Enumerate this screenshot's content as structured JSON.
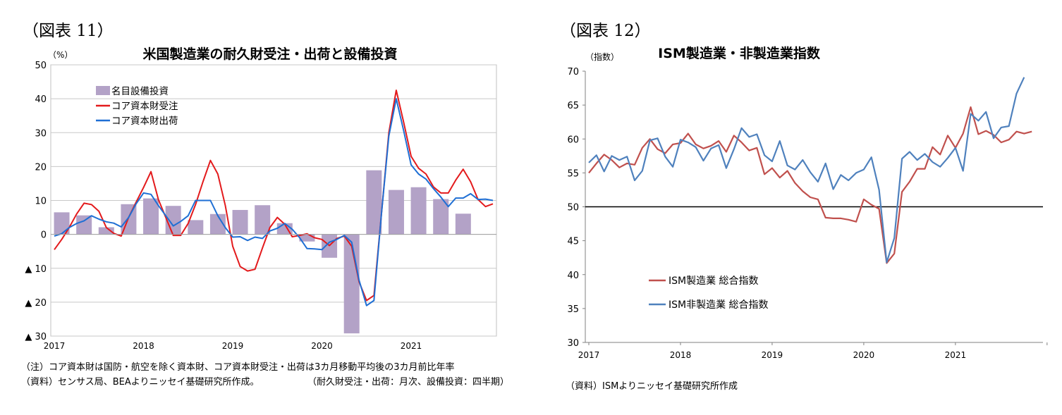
{
  "left_panel": {
    "figure_label": "（図表 11）",
    "note_line1": "（注）コア資本財は国防・航空を除く資本財、コア資本財受注・出荷は3カ月移動平均後の3カ月前比年率",
    "note_line2": "（資料）センサス局、BEAよりニッセイ基礎研究所作成。",
    "note_line2_right": "（耐久財受注・出荷：月次、設備投資：四半期）"
  },
  "right_panel": {
    "figure_label": "（図表 12）",
    "source_note": "（資料）ISMよりニッセイ基礎研究所作成"
  },
  "chart_data": [
    {
      "type": "bar",
      "title": "米国製造業の耐久財受注・出荷と設備投資",
      "unit_label": "（%）",
      "ylim": [
        -30,
        50
      ],
      "y_ticks": [
        50,
        40,
        30,
        20,
        10,
        0,
        -10,
        -20,
        -30
      ],
      "y_tick_labels": [
        "50",
        "40",
        "30",
        "20",
        "10",
        "0",
        "▲ 10",
        "▲ 20",
        "▲ 30"
      ],
      "x_tick_labels": [
        "2017",
        "2018",
        "2019",
        "2020",
        "2021"
      ],
      "grid": true,
      "legend_position": "top-left",
      "colors": {
        "bars": "#b3a2c7",
        "orders": "#e31a1c",
        "shipments": "#1f6fd4"
      },
      "bar_series": {
        "name": "名目設備投資",
        "x": [
          "2017-02",
          "2017-05",
          "2017-08",
          "2017-11",
          "2018-02",
          "2018-05",
          "2018-08",
          "2018-11",
          "2019-02",
          "2019-05",
          "2019-08",
          "2019-11",
          "2020-02",
          "2020-05",
          "2020-08",
          "2020-11",
          "2021-02",
          "2021-05",
          "2021-08"
        ],
        "values": [
          6.5,
          5.6,
          2.1,
          8.9,
          10.6,
          8.4,
          4.2,
          6.0,
          7.2,
          8.6,
          3.3,
          -2.1,
          -6.9,
          -29.2,
          18.9,
          13.1,
          13.9,
          10.4,
          6.1
        ]
      },
      "line_series": [
        {
          "name": "コア資本財受注",
          "x_start": "2017-01",
          "values": [
            -4.5,
            -1.5,
            2.0,
            6.0,
            9.2,
            8.8,
            6.8,
            2.0,
            0.3,
            -0.5,
            5.0,
            9.5,
            13.8,
            18.5,
            10.3,
            5.0,
            -0.3,
            -0.3,
            3.2,
            8.8,
            15.5,
            21.8,
            17.8,
            8.5,
            -3.5,
            -9.5,
            -10.8,
            -10.3,
            -4.0,
            2.0,
            5.0,
            3.0,
            -0.7,
            -0.3,
            0.2,
            -1.0,
            -1.5,
            -3.3,
            -1.2,
            -0.5,
            -3.5,
            -14.0,
            -19.5,
            -18.0,
            6.0,
            30.0,
            42.5,
            33.0,
            23.0,
            19.5,
            17.8,
            14.0,
            12.2,
            12.2,
            16.0,
            19.2,
            15.5,
            10.3,
            8.2,
            9.0
          ]
        },
        {
          "name": "コア資本財出荷",
          "x_start": "2017-01",
          "values": [
            -0.5,
            0.2,
            2.0,
            3.2,
            4.0,
            5.5,
            4.5,
            3.7,
            3.3,
            2.2,
            5.0,
            9.0,
            12.2,
            11.8,
            8.5,
            5.5,
            2.5,
            3.8,
            5.5,
            10.0,
            10.0,
            10.0,
            5.5,
            2.0,
            -0.8,
            -0.7,
            -1.8,
            -0.8,
            -1.2,
            1.0,
            1.8,
            3.2,
            1.5,
            -1.0,
            -4.2,
            -4.3,
            -4.5,
            -2.3,
            -1.5,
            -0.3,
            -2.3,
            -13.5,
            -21.0,
            -19.5,
            6.0,
            29.0,
            40.0,
            30.5,
            20.5,
            17.8,
            16.3,
            13.5,
            11.0,
            8.2,
            10.7,
            10.7,
            12.0,
            10.3,
            10.4,
            10.0
          ]
        }
      ]
    },
    {
      "type": "line",
      "title": "ISM製造業・非製造業指数",
      "unit_label": "（指数）",
      "ylim": [
        30,
        70
      ],
      "y_ticks": [
        70,
        65,
        60,
        55,
        50,
        45,
        40,
        35,
        30
      ],
      "x_tick_labels": [
        "2017",
        "2018",
        "2019",
        "2020",
        "2021"
      ],
      "grid": false,
      "reference_line": 50,
      "legend_position": "lower-left",
      "colors": {
        "manufacturing": "#c0504d",
        "non_manufacturing": "#4f81bd",
        "reference": "#000000"
      },
      "series": [
        {
          "name": "ISM製造業 総合指数",
          "x_start": "2017-01",
          "values": [
            55.0,
            56.4,
            57.7,
            56.9,
            55.8,
            56.4,
            56.2,
            58.7,
            60.0,
            58.5,
            57.9,
            59.2,
            59.4,
            60.8,
            59.2,
            58.6,
            59.0,
            59.7,
            58.1,
            60.5,
            59.5,
            58.3,
            58.7,
            54.8,
            55.7,
            54.3,
            55.3,
            53.5,
            52.3,
            51.4,
            51.1,
            48.4,
            48.3,
            48.3,
            48.1,
            47.8,
            51.1,
            50.3,
            49.7,
            41.7,
            43.1,
            52.2,
            53.7,
            55.6,
            55.6,
            58.8,
            57.7,
            60.5,
            58.7,
            60.8,
            64.7,
            60.7,
            61.2,
            60.6,
            59.5,
            59.9,
            61.1,
            60.8,
            61.1
          ]
        },
        {
          "name": "ISM非製造業 総合指数",
          "x_start": "2017-01",
          "values": [
            56.5,
            57.6,
            55.2,
            57.5,
            56.9,
            57.4,
            53.9,
            55.3,
            59.8,
            60.1,
            57.4,
            55.9,
            59.9,
            59.5,
            58.8,
            56.8,
            58.6,
            59.1,
            55.7,
            58.5,
            61.6,
            60.3,
            60.7,
            57.6,
            56.7,
            59.7,
            56.1,
            55.5,
            56.9,
            55.1,
            53.7,
            56.4,
            52.6,
            54.7,
            53.9,
            55.0,
            55.5,
            57.3,
            52.5,
            41.8,
            45.4,
            57.1,
            58.1,
            56.9,
            57.8,
            56.6,
            55.9,
            57.2,
            58.7,
            55.3,
            63.7,
            62.7,
            64.0,
            60.1,
            61.7,
            61.9,
            66.7,
            69.1
          ]
        }
      ]
    }
  ]
}
